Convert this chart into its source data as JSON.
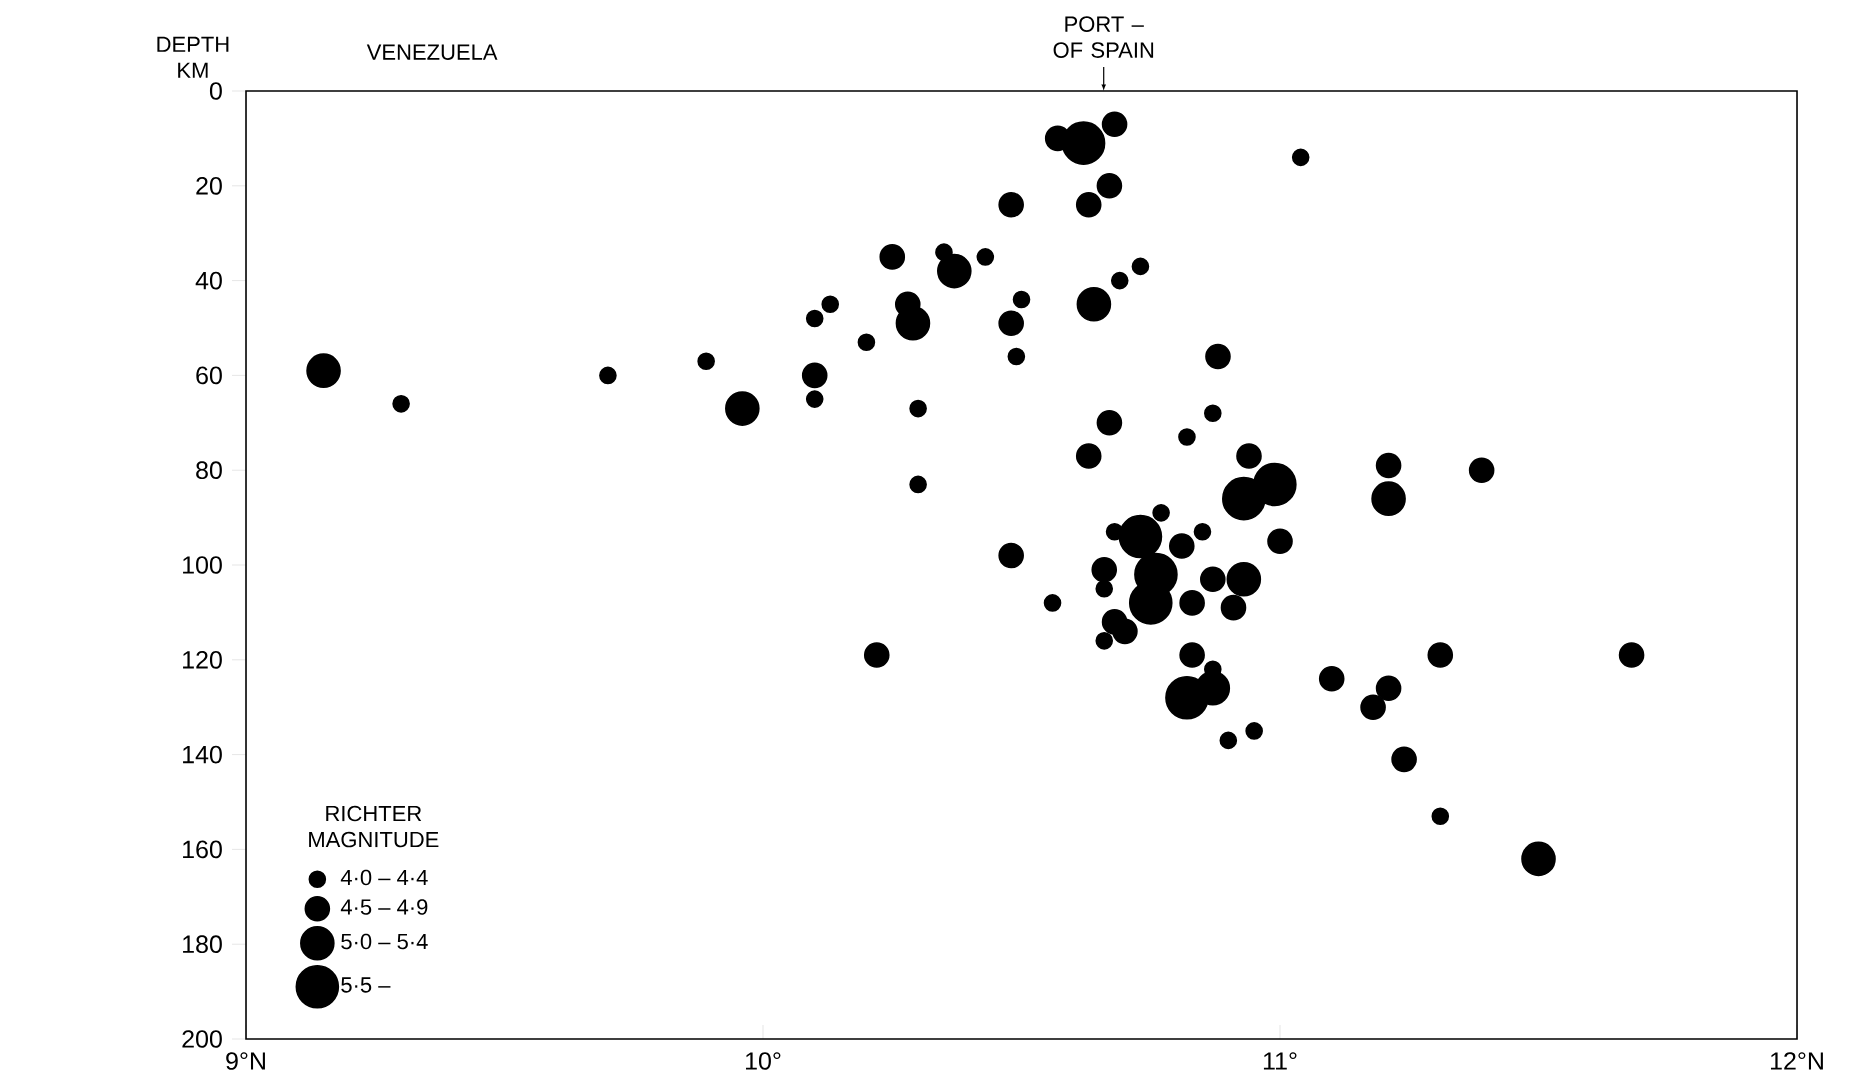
{
  "chart_data": {
    "type": "scatter",
    "ylabel": "DEPTH KM",
    "legend_title": "RICHTER MAGNITUDE",
    "marker": "circle",
    "legend": "bottom left",
    "xlim": [
      9,
      12
    ],
    "xticks": [
      {
        "value": 9,
        "label": "9°N"
      },
      {
        "value": 10,
        "label": "10°"
      },
      {
        "value": 11,
        "label": "11°"
      },
      {
        "value": 12,
        "label": "12°N"
      }
    ],
    "ylim": [
      200,
      0
    ],
    "yticks": [
      0,
      20,
      40,
      60,
      80,
      100,
      120,
      140,
      160,
      180,
      200
    ],
    "annotations": [
      "VENEZUELA",
      "PORT – OF SPAIN"
    ],
    "series": [
      {
        "name": "4·0 – 4·4",
        "color": "#000000",
        "x": [
          9.3,
          9.7,
          9.89,
          10.1,
          10.1,
          10.13,
          10.2,
          10.3,
          10.3,
          10.35,
          10.43,
          10.5,
          10.49,
          10.56,
          10.69,
          10.73,
          11.04,
          10.87,
          10.82,
          10.77,
          10.68,
          10.85,
          10.66,
          10.66,
          10.87,
          10.9,
          10.95,
          11.31
        ],
        "values": [
          66,
          60,
          57,
          65,
          48,
          45,
          53,
          67,
          83,
          34,
          35,
          44,
          56,
          108,
          40,
          37,
          14,
          68,
          73,
          89,
          93,
          93,
          105,
          116,
          122,
          137,
          135,
          153
        ]
      },
      {
        "name": "4·5 – 4·9",
        "color": "#000000",
        "x": [
          10.1,
          10.25,
          10.28,
          10.48,
          10.48,
          10.48,
          10.22,
          10.57,
          10.68,
          10.67,
          10.63,
          10.88,
          10.67,
          10.63,
          10.94,
          10.81,
          11.0,
          10.66,
          10.87,
          10.91,
          10.83,
          10.68,
          10.7,
          10.83,
          11.1,
          11.18,
          11.21,
          11.21,
          11.31,
          11.39,
          11.24,
          11.68
        ],
        "values": [
          60,
          35,
          45,
          24,
          49,
          98,
          119,
          10,
          7,
          20,
          24,
          56,
          70,
          77,
          77,
          96,
          95,
          101,
          103,
          109,
          108,
          112,
          114,
          119,
          124,
          130,
          126,
          79,
          119,
          80,
          141,
          119
        ]
      },
      {
        "name": "5·0 – 5·4",
        "color": "#000000",
        "x": [
          9.15,
          9.96,
          10.29,
          10.37,
          10.64,
          10.93,
          10.87,
          11.21,
          11.5
        ],
        "values": [
          59,
          67,
          49,
          38,
          45,
          103,
          126,
          86,
          162
        ]
      },
      {
        "name": "5·5 –",
        "color": "#000000",
        "x": [
          10.62,
          10.93,
          10.99,
          10.73,
          10.76,
          10.75,
          10.82
        ],
        "values": [
          11,
          86,
          83,
          94,
          102,
          108,
          128
        ]
      }
    ]
  }
}
